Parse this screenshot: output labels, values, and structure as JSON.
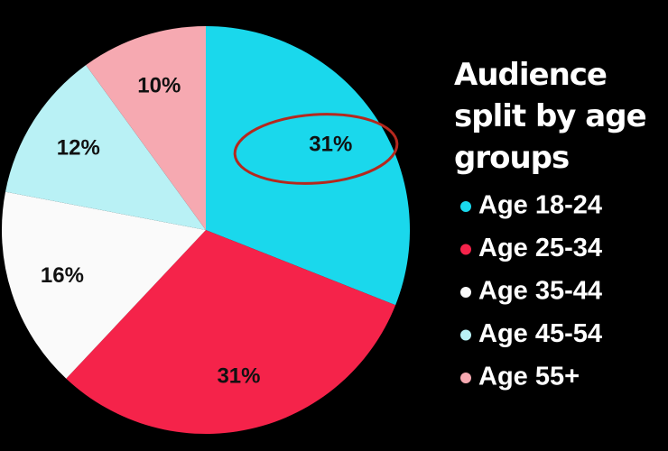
{
  "chart_data": {
    "type": "pie",
    "title": "Audience split by age groups",
    "categories": [
      "Age 18-24",
      "Age 25-34",
      "Age 35-44",
      "Age 45-54",
      "Age 55+"
    ],
    "values": [
      31,
      31,
      16,
      12,
      10
    ],
    "value_labels": [
      "31%",
      "31%",
      "16%",
      "12%",
      "10%"
    ],
    "colors": [
      "#1ad8ec",
      "#f5234a",
      "#fafafa",
      "#b9f1f5",
      "#f6a9b1"
    ],
    "legend": "right"
  }
}
